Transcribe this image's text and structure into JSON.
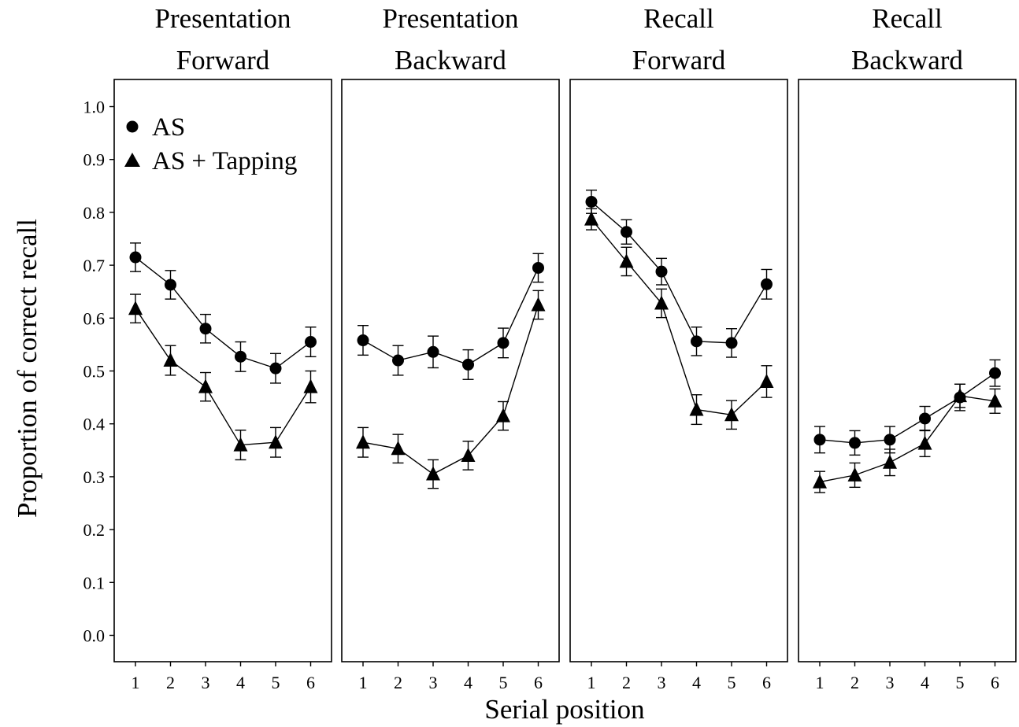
{
  "chart_data": {
    "type": "line",
    "xlabel": "Serial position",
    "ylabel": "Proportion of correct recall",
    "ylim": [
      0.0,
      1.05
    ],
    "y_ticks": [
      "0.0",
      "0.1",
      "0.2",
      "0.3",
      "0.4",
      "0.5",
      "0.6",
      "0.7",
      "0.8",
      "0.9",
      "1.0"
    ],
    "x": [
      "1",
      "2",
      "3",
      "4",
      "5",
      "6"
    ],
    "grid": false,
    "legend": {
      "placement": "top-left of first panel",
      "entries": [
        {
          "label": "AS",
          "marker": "circle"
        },
        {
          "label": "AS + Tapping",
          "marker": "triangle"
        }
      ]
    },
    "panels": [
      {
        "title_line1": "Presentation",
        "title_line2": "Forward",
        "series": [
          {
            "name": "AS",
            "marker": "circle",
            "values": [
              0.715,
              0.663,
              0.58,
              0.527,
              0.505,
              0.555
            ],
            "errors": [
              0.027,
              0.027,
              0.027,
              0.028,
              0.028,
              0.028
            ]
          },
          {
            "name": "AS + Tapping",
            "marker": "triangle",
            "values": [
              0.618,
              0.52,
              0.47,
              0.36,
              0.365,
              0.47
            ],
            "errors": [
              0.027,
              0.028,
              0.027,
              0.028,
              0.028,
              0.03
            ]
          }
        ]
      },
      {
        "title_line1": "Presentation",
        "title_line2": "Backward",
        "series": [
          {
            "name": "AS",
            "marker": "circle",
            "values": [
              0.558,
              0.52,
              0.536,
              0.512,
              0.553,
              0.695
            ],
            "errors": [
              0.028,
              0.028,
              0.03,
              0.028,
              0.028,
              0.027
            ]
          },
          {
            "name": "AS + Tapping",
            "marker": "triangle",
            "values": [
              0.365,
              0.353,
              0.305,
              0.34,
              0.415,
              0.625
            ],
            "errors": [
              0.028,
              0.027,
              0.027,
              0.027,
              0.027,
              0.027
            ]
          }
        ]
      },
      {
        "title_line1": "Recall",
        "title_line2": "Forward",
        "series": [
          {
            "name": "AS",
            "marker": "circle",
            "values": [
              0.82,
              0.763,
              0.688,
              0.556,
              0.553,
              0.664
            ],
            "errors": [
              0.022,
              0.023,
              0.025,
              0.027,
              0.027,
              0.028
            ]
          },
          {
            "name": "AS + Tapping",
            "marker": "triangle",
            "values": [
              0.787,
              0.707,
              0.628,
              0.427,
              0.417,
              0.48
            ],
            "errors": [
              0.02,
              0.027,
              0.027,
              0.028,
              0.027,
              0.03
            ]
          }
        ]
      },
      {
        "title_line1": "Recall",
        "title_line2": "Backward",
        "series": [
          {
            "name": "AS",
            "marker": "circle",
            "values": [
              0.37,
              0.364,
              0.37,
              0.41,
              0.45,
              0.496
            ],
            "errors": [
              0.025,
              0.023,
              0.025,
              0.023,
              0.025,
              0.025
            ]
          },
          {
            "name": "AS + Tapping",
            "marker": "triangle",
            "values": [
              0.29,
              0.303,
              0.327,
              0.363,
              0.453,
              0.443
            ],
            "errors": [
              0.02,
              0.023,
              0.025,
              0.025,
              0.022,
              0.023
            ]
          }
        ]
      }
    ]
  }
}
